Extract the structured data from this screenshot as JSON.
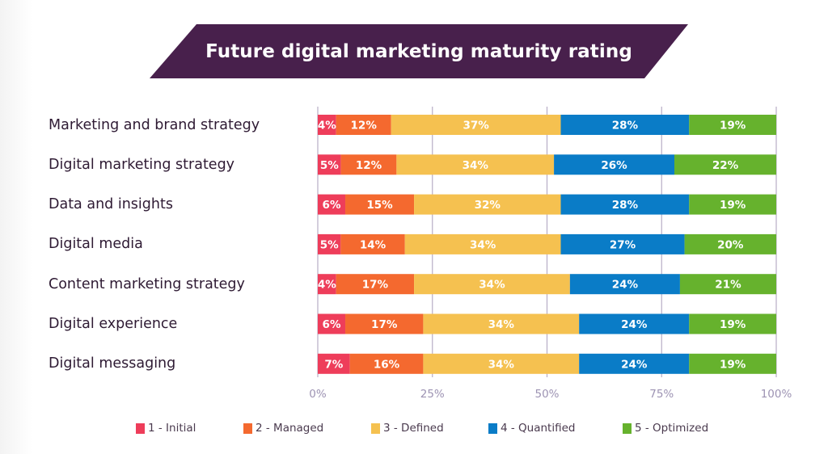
{
  "chart_data": {
    "type": "bar",
    "orientation": "horizontal",
    "stacked": true,
    "title": "Future digital marketing maturity rating",
    "categories": [
      "Marketing and brand strategy",
      "Digital marketing strategy",
      "Data and insights",
      "Digital media",
      "Content marketing strategy",
      "Digital experience",
      "Digital messaging"
    ],
    "series": [
      {
        "name": "1 - Initial",
        "color": "#ee3d5a",
        "values": [
          4,
          5,
          6,
          5,
          4,
          6,
          7
        ]
      },
      {
        "name": "2 - Managed",
        "color": "#f4692f",
        "values": [
          12,
          12,
          15,
          14,
          17,
          17,
          16
        ]
      },
      {
        "name": "3 - Defined",
        "color": "#f5c150",
        "values": [
          37,
          34,
          32,
          34,
          34,
          34,
          34
        ]
      },
      {
        "name": "4 - Quantified",
        "color": "#0a7cc7",
        "values": [
          28,
          26,
          28,
          27,
          24,
          24,
          24
        ]
      },
      {
        "name": "5 - Optimized",
        "color": "#66b22d",
        "values": [
          19,
          22,
          19,
          20,
          21,
          19,
          19
        ]
      }
    ],
    "xlim": [
      0,
      100
    ],
    "xticks": [
      "0%",
      "25%",
      "50%",
      "75%",
      "100%"
    ],
    "xlabel": "",
    "ylabel": "",
    "grid": true,
    "legend_position": "bottom",
    "value_suffix": "%"
  },
  "colors": {
    "banner": "#48204c",
    "title_text": "#ffffff",
    "label_text": "#2e1a33",
    "grid": "#b7adc6",
    "tick_text": "#9d93b3"
  }
}
